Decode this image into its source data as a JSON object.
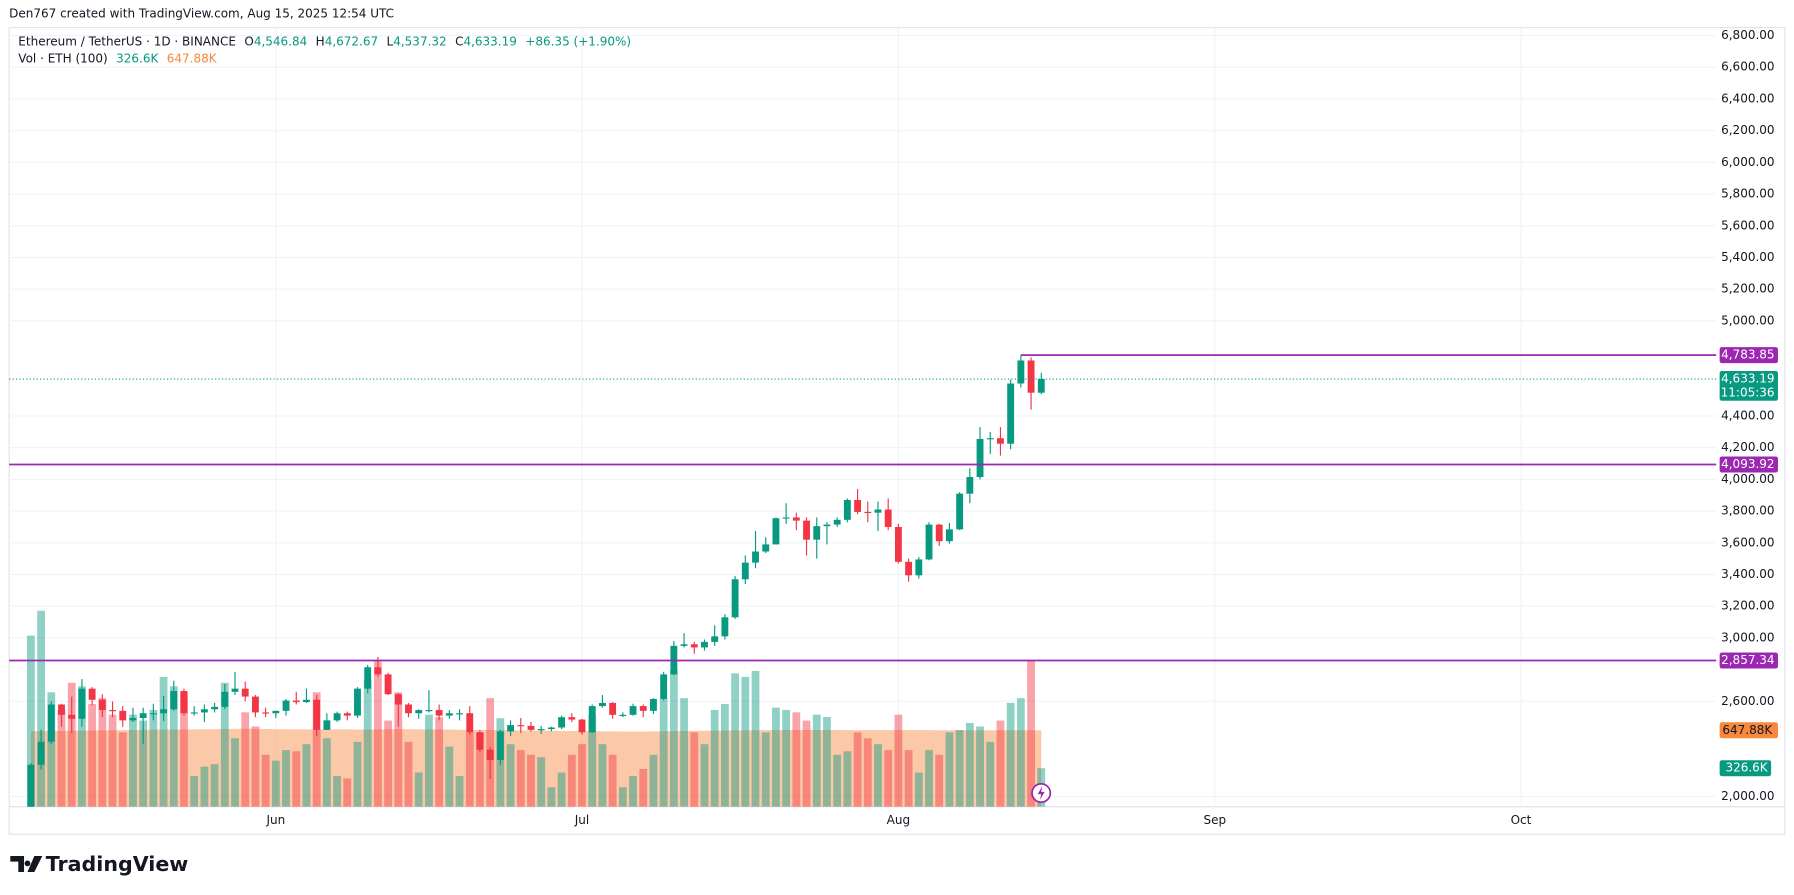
{
  "header": "Den767 created with TradingView.com, Aug 15, 2025 12:54 UTC",
  "logo": "TradingView",
  "chart_data": {
    "type": "candlestick",
    "legend": {
      "symbol": "Ethereum / TetherUS · 1D · BINANCE",
      "o": "O",
      "open": "4,546.84",
      "h": "H",
      "high": "4,672.67",
      "l": "L",
      "low": "4,537.32",
      "c": "C",
      "close": "4,633.19",
      "change": "+86.35 (+1.90%)",
      "volume_title": "Vol · ETH (100)"
    },
    "up_color": "#089981",
    "down_color": "#f23645",
    "open": [
      1810,
      2200,
      2345,
      2580,
      2515,
      2490,
      2680,
      2610,
      2545,
      2540,
      2480,
      2495,
      2525,
      2525,
      2550,
      2665,
      2525,
      2530,
      2550,
      2565,
      2660,
      2680,
      2630,
      2530,
      2525,
      2540,
      2605,
      2595,
      2610,
      2420,
      2480,
      2525,
      2510,
      2680,
      2815,
      2770,
      2645,
      2580,
      2525,
      2545,
      2545,
      2510,
      2525,
      2525,
      2405,
      2295,
      2230,
      2410,
      2450,
      2445,
      2420,
      2425,
      2435,
      2500,
      2485,
      2405,
      2570,
      2590,
      2515,
      2515,
      2570,
      2540,
      2615,
      2770,
      2950,
      2960,
      2940,
      2975,
      3010,
      3130,
      3370,
      3475,
      3545,
      3590,
      3755,
      3760,
      3740,
      3620,
      3705,
      3715,
      3745,
      3870,
      3795,
      3790,
      3810,
      3700,
      3480,
      3395,
      3495,
      3715,
      3610,
      3685,
      3910,
      4015,
      4255,
      4260,
      4225,
      4605,
      4750,
      4546.84
    ],
    "high": [
      2210,
      2420,
      2600,
      2585,
      2630,
      2740,
      2690,
      2645,
      2600,
      2570,
      2560,
      2560,
      2585,
      2635,
      2730,
      2680,
      2570,
      2580,
      2590,
      2710,
      2785,
      2725,
      2640,
      2560,
      2540,
      2615,
      2660,
      2680,
      2640,
      2525,
      2535,
      2535,
      2690,
      2830,
      2880,
      2780,
      2650,
      2590,
      2550,
      2670,
      2580,
      2545,
      2550,
      2570,
      2420,
      2310,
      2420,
      2480,
      2495,
      2470,
      2445,
      2440,
      2510,
      2525,
      2490,
      2580,
      2640,
      2595,
      2530,
      2585,
      2580,
      2620,
      2785,
      2980,
      3030,
      2975,
      2990,
      3080,
      3150,
      3390,
      3520,
      3675,
      3635,
      3760,
      3850,
      3790,
      3760,
      3760,
      3730,
      3760,
      3880,
      3940,
      3860,
      3860,
      3880,
      3720,
      3500,
      3510,
      3730,
      3720,
      3725,
      3920,
      4070,
      4330,
      4300,
      4330,
      4630,
      4783.85,
      4770,
      4672.67
    ],
    "low": [
      1795,
      2170,
      2330,
      2440,
      2400,
      2440,
      2575,
      2500,
      2500,
      2440,
      2470,
      2330,
      2480,
      2475,
      2540,
      2510,
      2510,
      2470,
      2530,
      2550,
      2640,
      2600,
      2500,
      2500,
      2495,
      2510,
      2580,
      2590,
      2380,
      2420,
      2470,
      2480,
      2495,
      2650,
      2755,
      2640,
      2440,
      2500,
      2490,
      2530,
      2480,
      2490,
      2480,
      2390,
      2280,
      2110,
      2200,
      2380,
      2400,
      2410,
      2395,
      2410,
      2425,
      2470,
      2390,
      2400,
      2560,
      2490,
      2500,
      2510,
      2500,
      2520,
      2605,
      2765,
      2940,
      2900,
      2920,
      2950,
      2990,
      3120,
      3340,
      3440,
      3535,
      3590,
      3720,
      3680,
      3520,
      3500,
      3590,
      3700,
      3730,
      3780,
      3730,
      3675,
      3680,
      3470,
      3355,
      3375,
      3490,
      3580,
      3595,
      3680,
      3850,
      4000,
      4160,
      4150,
      4190,
      4580,
      4440,
      4537.32
    ],
    "close": [
      2200,
      2345,
      2580,
      2515,
      2490,
      2680,
      2610,
      2545,
      2540,
      2480,
      2495,
      2525,
      2525,
      2550,
      2665,
      2525,
      2530,
      2550,
      2565,
      2660,
      2680,
      2630,
      2530,
      2525,
      2540,
      2605,
      2595,
      2610,
      2420,
      2480,
      2525,
      2510,
      2680,
      2815,
      2770,
      2645,
      2580,
      2525,
      2545,
      2545,
      2510,
      2525,
      2525,
      2405,
      2295,
      2230,
      2410,
      2450,
      2445,
      2420,
      2425,
      2435,
      2500,
      2485,
      2405,
      2570,
      2590,
      2515,
      2515,
      2570,
      2540,
      2615,
      2770,
      2950,
      2960,
      2940,
      2975,
      3010,
      3130,
      3370,
      3475,
      3545,
      3590,
      3755,
      3760,
      3740,
      3620,
      3705,
      3715,
      3745,
      3870,
      3795,
      3790,
      3810,
      3700,
      3480,
      3395,
      3495,
      3715,
      3610,
      3685,
      3910,
      4015,
      4255,
      4260,
      4225,
      4605,
      4750,
      4546.84,
      4633.19
    ],
    "volume": {
      "values": [
        1450000,
        1660000,
        970000,
        820000,
        1050000,
        1020000,
        870000,
        920000,
        780000,
        630000,
        780000,
        730000,
        820000,
        1100000,
        1020000,
        970000,
        260000,
        340000,
        360000,
        1050000,
        580000,
        800000,
        680000,
        440000,
        390000,
        480000,
        470000,
        530000,
        970000,
        580000,
        260000,
        240000,
        550000,
        1070000,
        1230000,
        730000,
        970000,
        550000,
        290000,
        780000,
        760000,
        510000,
        260000,
        630000,
        630000,
        920000,
        750000,
        530000,
        480000,
        440000,
        420000,
        165000,
        290000,
        440000,
        530000,
        780000,
        530000,
        440000,
        165000,
        260000,
        320000,
        440000,
        920000,
        1160000,
        920000,
        630000,
        530000,
        820000,
        870000,
        1130000,
        1100000,
        1150000,
        630000,
        840000,
        820000,
        800000,
        730000,
        780000,
        760000,
        440000,
        470000,
        630000,
        580000,
        530000,
        480000,
        780000,
        480000,
        290000,
        480000,
        440000,
        630000,
        650000,
        710000,
        680000,
        550000,
        730000,
        880000,
        920000,
        1240000,
        326600
      ],
      "value_label": "326.6K",
      "ma": [
        640000,
        641000,
        642000,
        643000,
        644000,
        645000,
        646000,
        647000,
        648000,
        649000,
        650000,
        651000,
        652000,
        653000,
        654000,
        655000,
        656000,
        657000,
        658000,
        659000,
        660000,
        661000,
        660000,
        659000,
        658000,
        657000,
        656000,
        655000,
        654000,
        655000,
        656000,
        655000,
        654000,
        653000,
        655000,
        657000,
        658000,
        657000,
        656000,
        655000,
        654000,
        653000,
        652000,
        651000,
        650000,
        650000,
        649000,
        648000,
        647000,
        646000,
        645000,
        644000,
        643000,
        642000,
        641000,
        640000,
        640000,
        639000,
        638000,
        638000,
        638000,
        639000,
        640000,
        641000,
        642000,
        643000,
        644000,
        645000,
        646000,
        647000,
        648000,
        648000,
        649000,
        649000,
        650000,
        650000,
        650000,
        650000,
        650000,
        650000,
        649000,
        649000,
        649000,
        649000,
        649000,
        649000,
        649000,
        649000,
        649000,
        648000,
        648000,
        648000,
        648000,
        648000,
        648000,
        648000,
        648000,
        648000,
        648000,
        647880
      ],
      "ma_label": "647.88K",
      "ma_color": "#f7883e",
      "ylim": [
        0,
        6600000
      ]
    },
    "xlim": [
      -2.13,
      165.13
    ],
    "xticks": [
      {
        "value": 24,
        "label": "Jun"
      },
      {
        "value": 54,
        "label": "Jul"
      },
      {
        "value": 85,
        "label": "Aug"
      },
      {
        "value": 116,
        "label": "Sep"
      },
      {
        "value": 146,
        "label": "Oct"
      }
    ],
    "ylim": [
      1935,
      6850
    ],
    "yticks": [
      {
        "value": 6800,
        "label": "6,800.00"
      },
      {
        "value": 6600,
        "label": "6,600.00"
      },
      {
        "value": 6400,
        "label": "6,400.00"
      },
      {
        "value": 6200,
        "label": "6,200.00"
      },
      {
        "value": 6000,
        "label": "6,000.00"
      },
      {
        "value": 5800,
        "label": "5,800.00"
      },
      {
        "value": 5600,
        "label": "5,600.00"
      },
      {
        "value": 5400,
        "label": "5,400.00"
      },
      {
        "value": 5200,
        "label": "5,200.00"
      },
      {
        "value": 5000,
        "label": "5,000.00"
      },
      {
        "value": 4400,
        "label": "4,400.00"
      },
      {
        "value": 4200,
        "label": "4,200.00"
      },
      {
        "value": 4000,
        "label": "4,000.00"
      },
      {
        "value": 3800,
        "label": "3,800.00"
      },
      {
        "value": 3600,
        "label": "3,600.00"
      },
      {
        "value": 3400,
        "label": "3,400.00"
      },
      {
        "value": 3200,
        "label": "3,200.00"
      },
      {
        "value": 3000,
        "label": "3,000.00"
      },
      {
        "value": 2600,
        "label": "2,600.00"
      },
      {
        "value": 2000,
        "label": "2,000.00"
      }
    ],
    "hlines": [
      {
        "value": 4783.85,
        "label": "4,783.85"
      },
      {
        "value": 4093.92,
        "label": "4,093.92"
      },
      {
        "value": 2857.34,
        "label": "2,857.34"
      }
    ],
    "hline_color": "#9c27b0",
    "last_price": {
      "value": 4633.19,
      "label": "4,633.19",
      "countdown": "11:05:36"
    },
    "grid": true
  }
}
